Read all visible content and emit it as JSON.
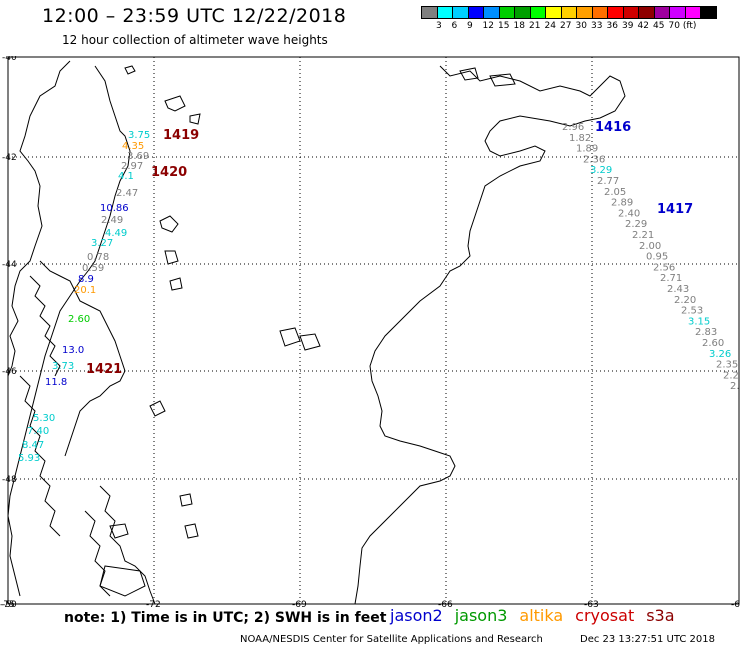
{
  "header": {
    "title": "12:00 – 23:59 UTC 12/22/2018",
    "subtitle": "12 hour collection of altimeter wave heights"
  },
  "colorbar": {
    "colors": [
      "#7f7f7f",
      "#00ffff",
      "#00cfff",
      "#0000ff",
      "#008fff",
      "#00cf00",
      "#009f00",
      "#00ff00",
      "#ffff00",
      "#ffcf00",
      "#ff9f00",
      "#ff6f00",
      "#ff0000",
      "#cf0000",
      "#8f0000",
      "#9f009f",
      "#cf00ff",
      "#ff00ff",
      "#000000"
    ],
    "labels": [
      "3",
      "6",
      "9",
      "12",
      "15",
      "18",
      "21",
      "24",
      "27",
      "30",
      "33",
      "36",
      "39",
      "42",
      "45",
      "70 (ft)"
    ]
  },
  "map": {
    "lat_labels": [
      "-40",
      "-42",
      "-44",
      "-46",
      "-48",
      "-50"
    ],
    "lon_labels": [
      "-75",
      "-72",
      "-69",
      "-66",
      "-63",
      "-60"
    ],
    "passes": [
      {
        "label": "1419",
        "color": "#8b0000"
      },
      {
        "label": "1420",
        "color": "#8b0000"
      },
      {
        "label": "1421",
        "color": "#8b0000"
      },
      {
        "label": "1416",
        "color": "#0000cc"
      },
      {
        "label": "1417",
        "color": "#0000cc"
      }
    ],
    "values_west": [
      {
        "v": "3.75",
        "c": "#00cccc"
      },
      {
        "v": "4.35",
        "c": "#ff9900"
      },
      {
        "v": "3.69",
        "c": "#7f7f7f"
      },
      {
        "v": "2.97",
        "c": "#7f7f7f"
      },
      {
        "v": "4.1",
        "c": "#00cccc"
      },
      {
        "v": "2.47",
        "c": "#7f7f7f"
      },
      {
        "v": "10.86",
        "c": "#0000cc"
      },
      {
        "v": "2.49",
        "c": "#7f7f7f"
      },
      {
        "v": "4.49",
        "c": "#00cccc"
      },
      {
        "v": "3.27",
        "c": "#00cccc"
      },
      {
        "v": "0.78",
        "c": "#7f7f7f"
      },
      {
        "v": "0.59",
        "c": "#7f7f7f"
      },
      {
        "v": "8.9",
        "c": "#0000cc"
      },
      {
        "v": "20.1",
        "c": "#ff9900"
      },
      {
        "v": "2.60",
        "c": "#00cc00"
      },
      {
        "v": "13.0",
        "c": "#0000cc"
      },
      {
        "v": "3.73",
        "c": "#00cccc"
      },
      {
        "v": "11.8",
        "c": "#0000cc"
      },
      {
        "v": "5.30",
        "c": "#00cccc"
      },
      {
        "v": "7.40",
        "c": "#00cccc"
      },
      {
        "v": "8.47",
        "c": "#00cccc"
      },
      {
        "v": "5.93",
        "c": "#00cccc"
      }
    ],
    "values_east": [
      {
        "v": "2.96",
        "c": "#7f7f7f"
      },
      {
        "v": "1.82",
        "c": "#7f7f7f"
      },
      {
        "v": "1.89",
        "c": "#7f7f7f"
      },
      {
        "v": "2.36",
        "c": "#7f7f7f"
      },
      {
        "v": "3.29",
        "c": "#00cccc"
      },
      {
        "v": "2.77",
        "c": "#7f7f7f"
      },
      {
        "v": "2.05",
        "c": "#7f7f7f"
      },
      {
        "v": "2.89",
        "c": "#7f7f7f"
      },
      {
        "v": "2.40",
        "c": "#7f7f7f"
      },
      {
        "v": "2.29",
        "c": "#7f7f7f"
      },
      {
        "v": "2.21",
        "c": "#7f7f7f"
      },
      {
        "v": "2.00",
        "c": "#7f7f7f"
      },
      {
        "v": "0.95",
        "c": "#7f7f7f"
      },
      {
        "v": "2.56",
        "c": "#7f7f7f"
      },
      {
        "v": "2.71",
        "c": "#7f7f7f"
      },
      {
        "v": "2.43",
        "c": "#7f7f7f"
      },
      {
        "v": "2.20",
        "c": "#7f7f7f"
      },
      {
        "v": "2.53",
        "c": "#7f7f7f"
      },
      {
        "v": "3.15",
        "c": "#00cccc"
      },
      {
        "v": "2.83",
        "c": "#7f7f7f"
      },
      {
        "v": "2.60",
        "c": "#7f7f7f"
      },
      {
        "v": "3.26",
        "c": "#00cccc"
      },
      {
        "v": "2.35",
        "c": "#7f7f7f"
      },
      {
        "v": "2.2",
        "c": "#7f7f7f"
      },
      {
        "v": "2.",
        "c": "#7f7f7f"
      }
    ]
  },
  "note": "note: 1) Time is in UTC; 2) SWH is in feet",
  "legend": [
    {
      "name": "jason2",
      "color": "#0000cc"
    },
    {
      "name": "jason3",
      "color": "#009900"
    },
    {
      "name": "altika",
      "color": "#ff9900"
    },
    {
      "name": "cryosat",
      "color": "#cc0000"
    },
    {
      "name": "s3a",
      "color": "#8b0000"
    }
  ],
  "footer": "NOAA/NESDIS Center for Satellite Applications and Research",
  "footer_date": "Dec 23 13:27:51 UTC 2018"
}
